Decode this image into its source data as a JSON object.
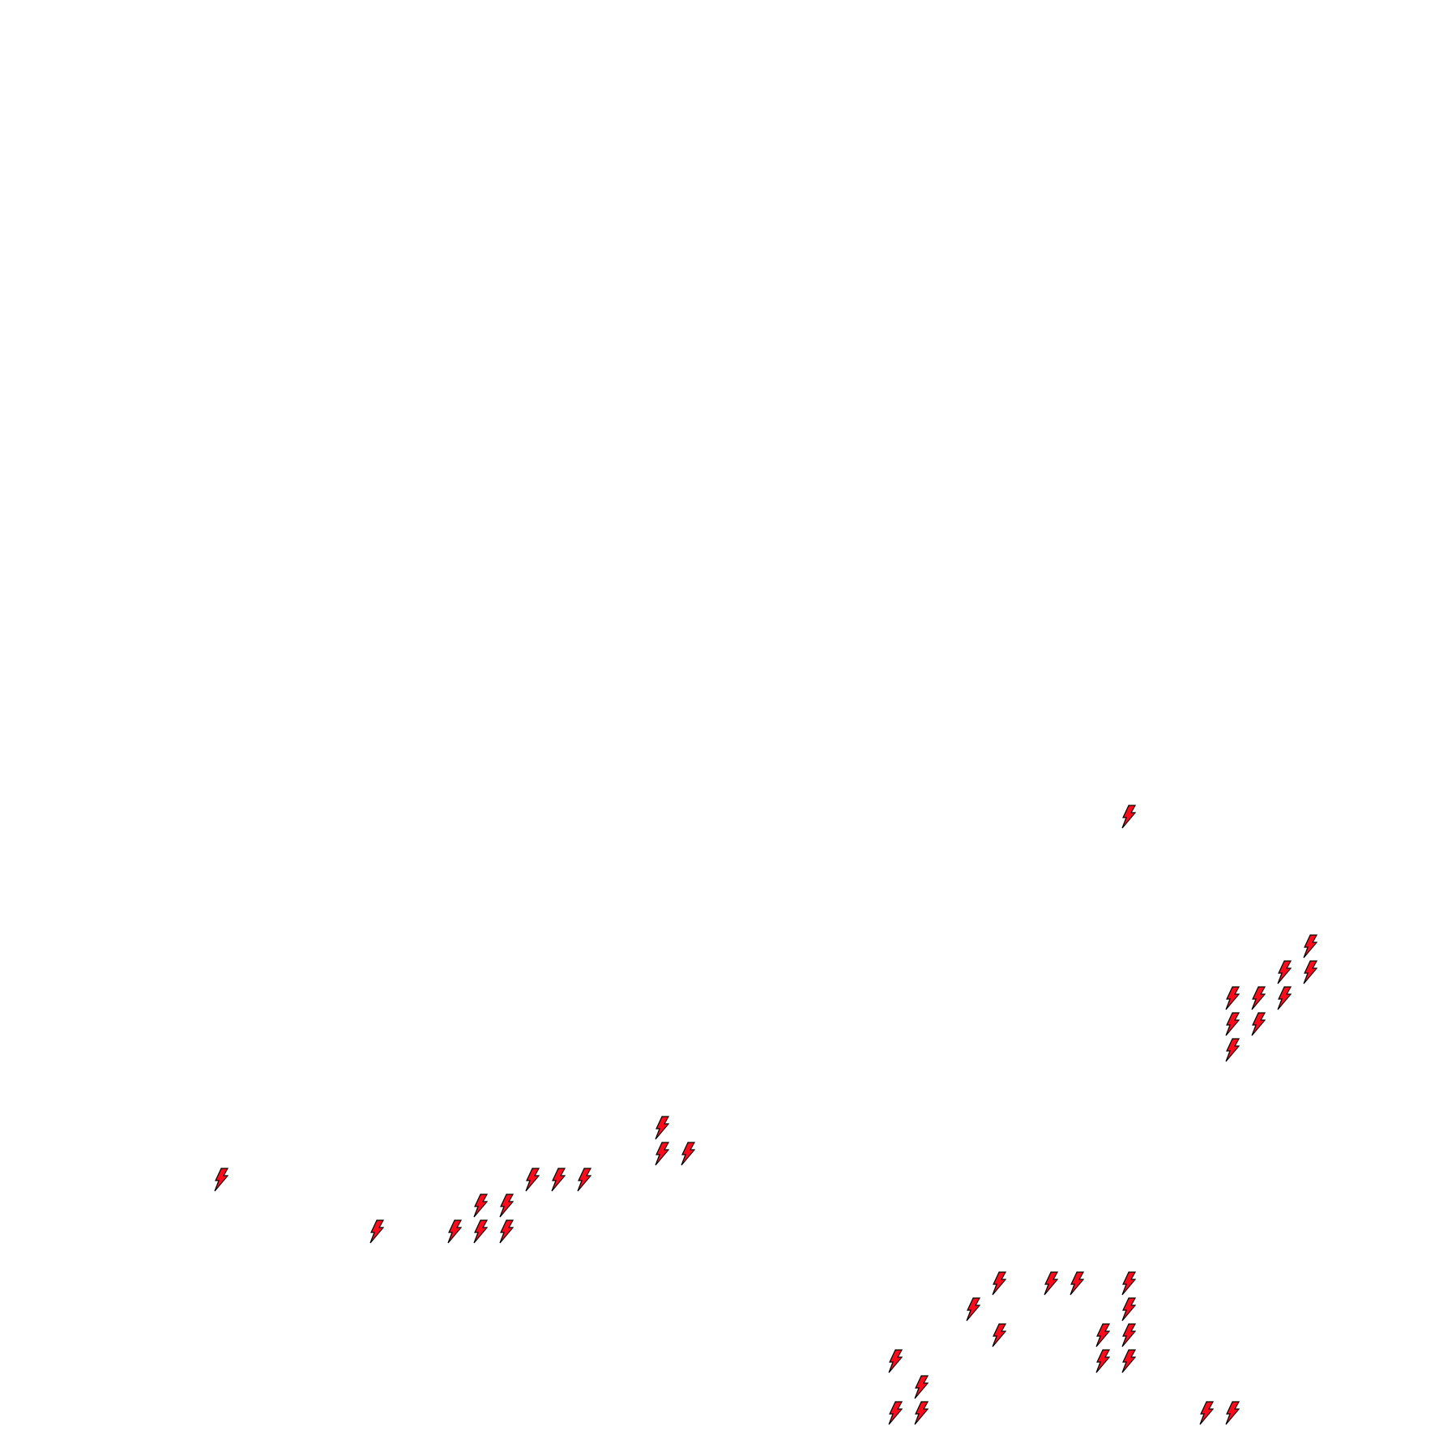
{
  "map": {
    "background": "#ffffff",
    "marker": {
      "icon": "lightning-bolt-icon",
      "fill": "#ff0a1a",
      "stroke": "#000000"
    }
  }
}
